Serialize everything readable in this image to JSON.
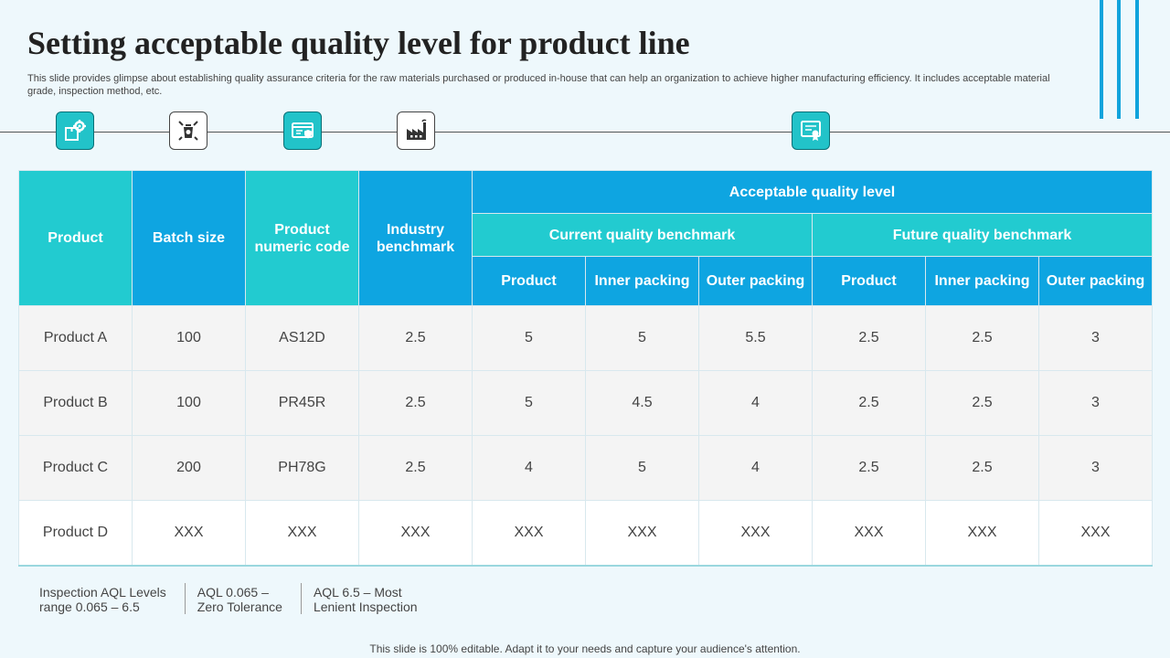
{
  "title": "Setting acceptable quality level for product line",
  "subtitle": "This slide provides glimpse about establishing quality assurance criteria for the raw materials purchased or produced in-house that can help an organization to achieve higher manufacturing efficiency. It includes acceptable material grade, inspection method, etc.",
  "icons": [
    "settings-box-icon",
    "recycle-bin-icon",
    "shield-card-icon",
    "factory-icon",
    "certificate-icon"
  ],
  "colors": {
    "teal": "#22cbd0",
    "blue": "#0ea5e1",
    "background": "#eef8fc"
  },
  "table": {
    "headers": {
      "product": "Product",
      "batch_size": "Batch size",
      "numeric_code": "Product numeric code",
      "industry_benchmark": "Industry benchmark",
      "aql": "Acceptable quality level",
      "current": "Current quality benchmark",
      "future": "Future quality benchmark",
      "sub": [
        "Product",
        "Inner packing",
        "Outer packing",
        "Product",
        "Inner packing",
        "Outer packing"
      ]
    },
    "rows": [
      [
        "Product A",
        "100",
        "AS12D",
        "2.5",
        "5",
        "5",
        "5.5",
        "2.5",
        "2.5",
        "3"
      ],
      [
        "Product B",
        "100",
        "PR45R",
        "2.5",
        "5",
        "4.5",
        "4",
        "2.5",
        "2.5",
        "3"
      ],
      [
        "Product C",
        "200",
        "PH78G",
        "2.5",
        "4",
        "5",
        "4",
        "2.5",
        "2.5",
        "3"
      ],
      [
        "Product D",
        "XXX",
        "XXX",
        "XXX",
        "XXX",
        "XXX",
        "XXX",
        "XXX",
        "XXX",
        "XXX"
      ]
    ]
  },
  "notes": [
    "Inspection AQL Levels\nrange 0.065 – 6.5",
    "AQL 0.065 –\nZero Tolerance",
    "AQL 6.5 – Most\nLenient Inspection"
  ],
  "footer": "This slide is 100% editable. Adapt it to your needs and capture your audience's attention."
}
